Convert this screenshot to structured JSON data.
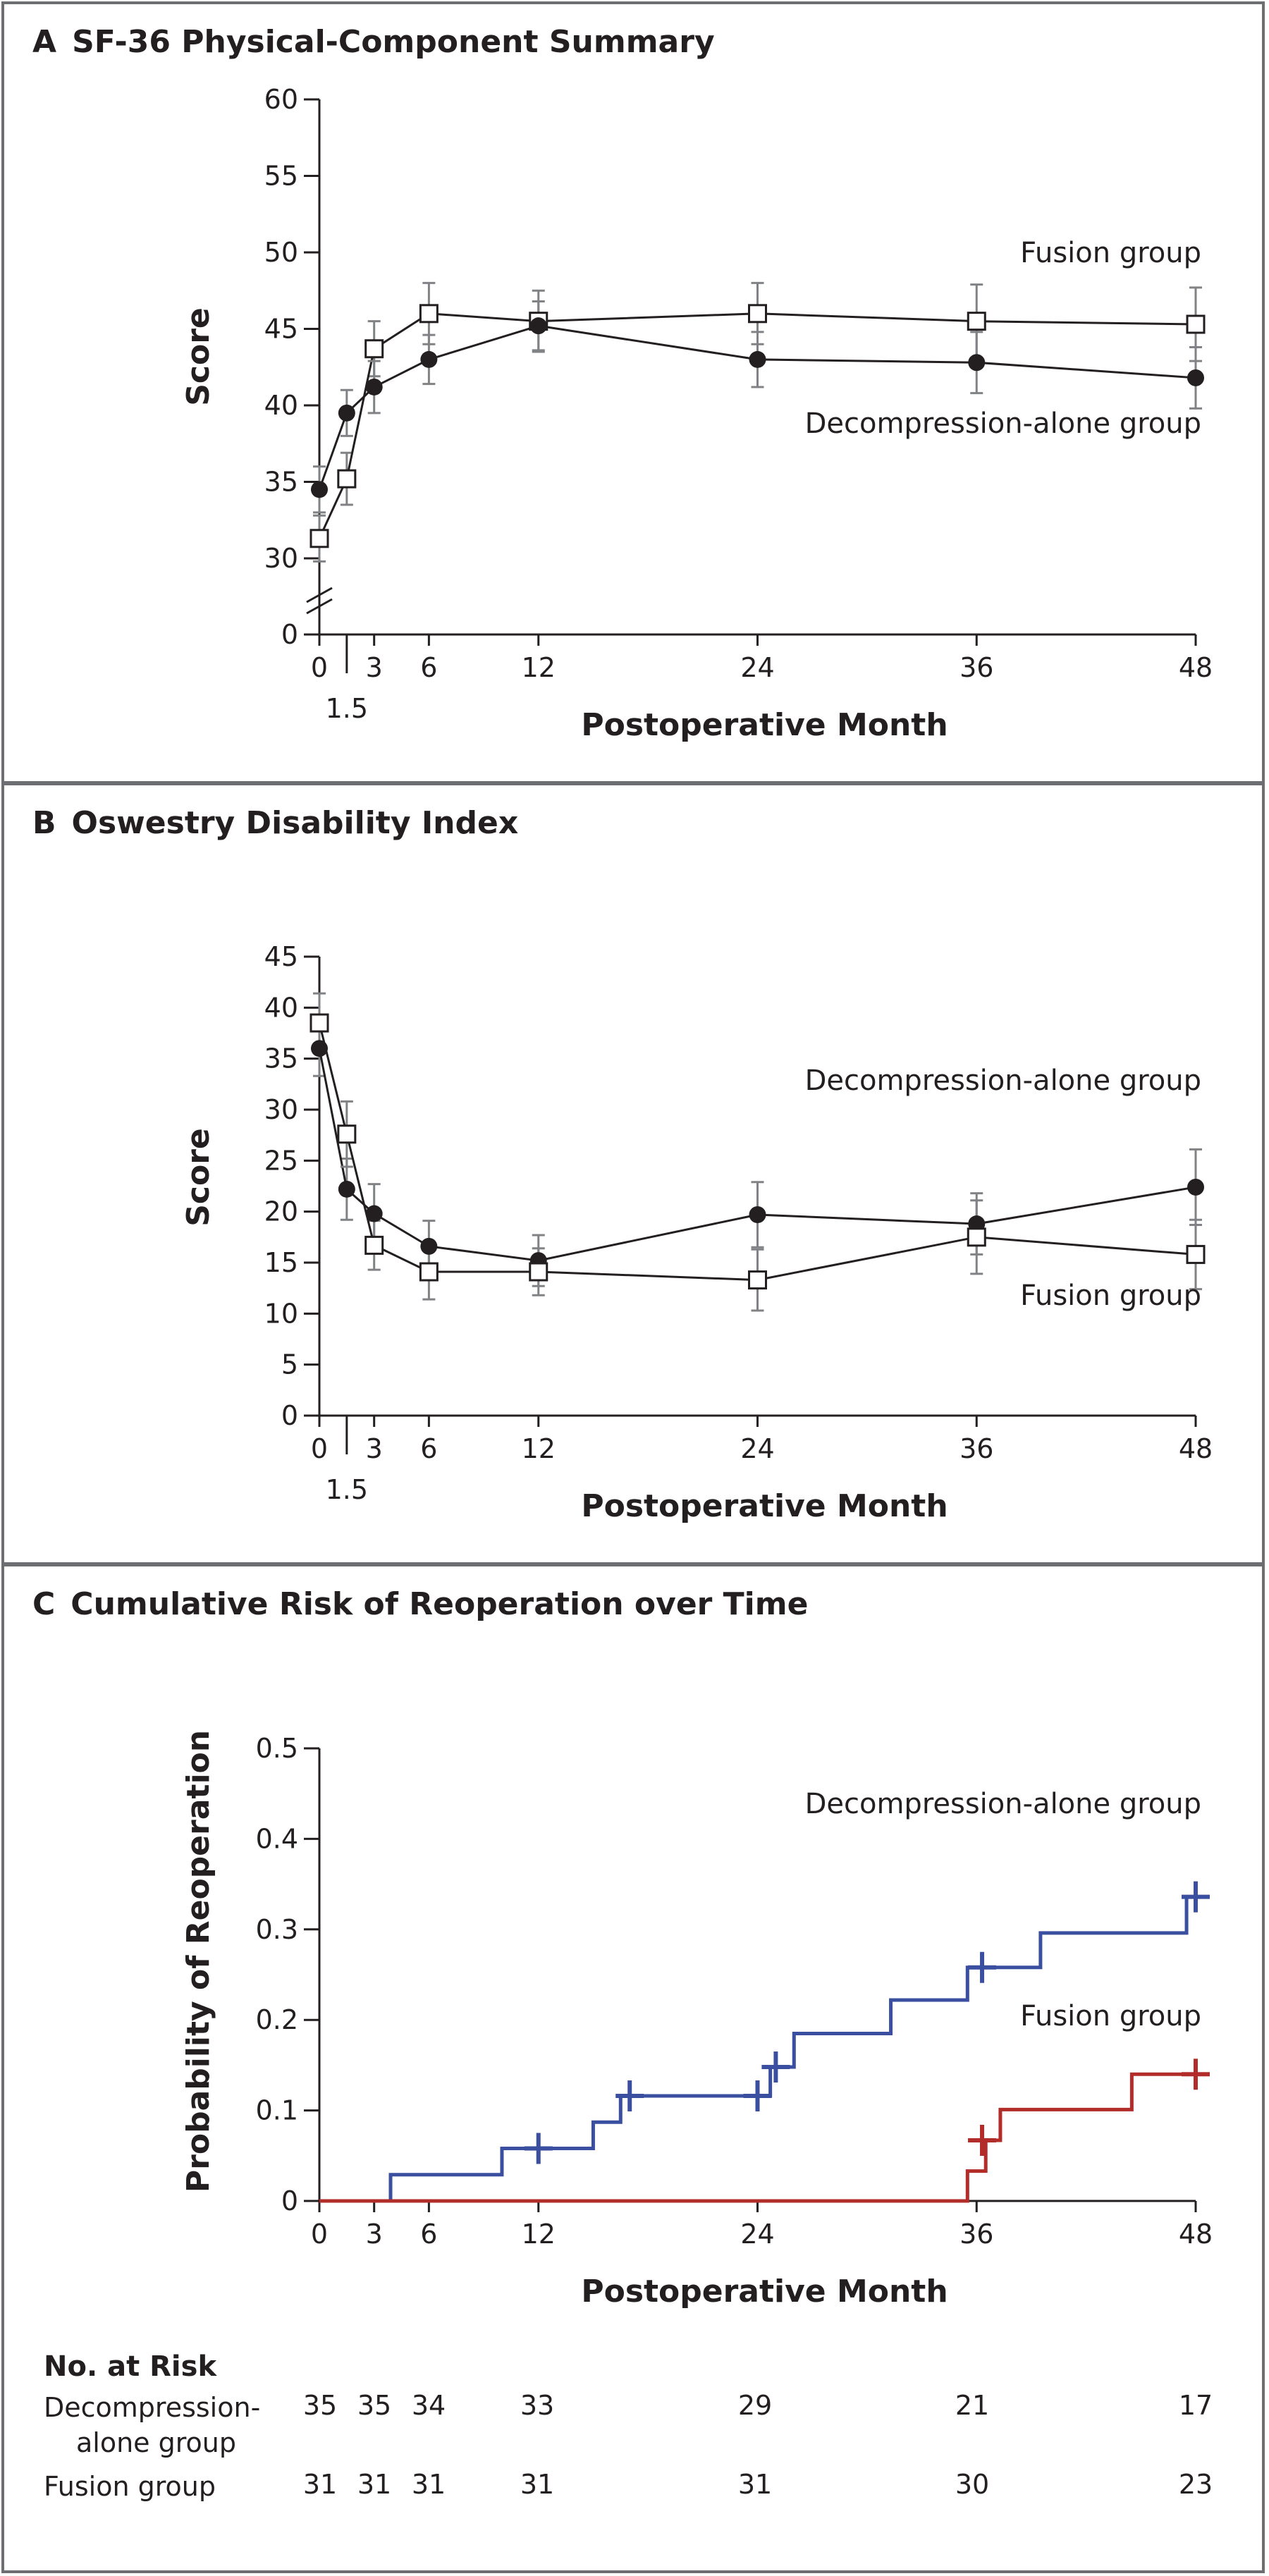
{
  "colors": {
    "blue": "#3a4fa0",
    "red": "#b22d2a",
    "black": "#231f20",
    "gray": "#808285",
    "frame": "#6d6e71"
  },
  "chart_data": [
    {
      "id": "A",
      "letter": "A",
      "type": "line",
      "title": "SF-36 Physical-Component Summary",
      "xlabel": "Postoperative Month",
      "ylabel": "Score",
      "x_ticks": [
        "0",
        "3",
        "6",
        "12",
        "24",
        "36",
        "48"
      ],
      "x_tick_values": [
        0,
        3,
        6,
        12,
        24,
        36,
        48
      ],
      "x_sub_tick": "1.5",
      "y_ticks": [
        "0",
        "30",
        "35",
        "40",
        "45",
        "50",
        "55",
        "60"
      ],
      "ylim": [
        30,
        60
      ],
      "axis_break": true,
      "x": [
        0,
        1.5,
        3,
        6,
        12,
        24,
        36,
        48
      ],
      "series": [
        {
          "name": "Fusion group",
          "label": "Fusion group",
          "marker": "square",
          "values": [
            31.3,
            35.2,
            43.7,
            46.0,
            45.5,
            46.0,
            45.5,
            45.3
          ],
          "err": [
            1.5,
            1.7,
            1.8,
            2.0,
            2.0,
            2.0,
            2.4,
            2.4
          ]
        },
        {
          "name": "Decompression-alone group",
          "label": "Decompression-alone group",
          "marker": "circle",
          "values": [
            34.5,
            39.5,
            41.2,
            43.0,
            45.2,
            43.0,
            42.8,
            41.8
          ],
          "err": [
            1.5,
            1.5,
            1.7,
            1.6,
            1.6,
            1.8,
            2.0,
            2.0
          ]
        }
      ]
    },
    {
      "id": "B",
      "letter": "B",
      "type": "line",
      "title": "Oswestry Disability Index",
      "xlabel": "Postoperative Month",
      "ylabel": "Score",
      "x_ticks": [
        "0",
        "3",
        "6",
        "12",
        "24",
        "36",
        "48"
      ],
      "x_tick_values": [
        0,
        3,
        6,
        12,
        24,
        36,
        48
      ],
      "x_sub_tick": "1.5",
      "y_ticks": [
        "0",
        "5",
        "10",
        "15",
        "20",
        "25",
        "30",
        "35",
        "40",
        "45"
      ],
      "ylim": [
        0,
        45
      ],
      "x": [
        0,
        1.5,
        3,
        6,
        12,
        24,
        36,
        48
      ],
      "series": [
        {
          "name": "Decompression-alone group",
          "label": "Decompression-alone group",
          "marker": "circle",
          "values": [
            36.0,
            22.2,
            19.8,
            16.6,
            15.2,
            19.7,
            18.8,
            22.4
          ],
          "err": [
            2.7,
            3.0,
            2.9,
            2.5,
            2.5,
            3.2,
            3.0,
            3.7
          ]
        },
        {
          "name": "Fusion group",
          "label": "Fusion group",
          "marker": "square",
          "values": [
            38.5,
            27.6,
            16.7,
            14.1,
            14.1,
            13.3,
            17.5,
            15.8
          ],
          "err": [
            2.9,
            3.2,
            2.4,
            2.7,
            2.3,
            3.0,
            3.6,
            3.4
          ]
        }
      ]
    },
    {
      "id": "C",
      "letter": "C",
      "type": "step",
      "title": "Cumulative Risk of Reoperation over Time",
      "xlabel": "Postoperative Month",
      "ylabel": "Probability of Reoperation",
      "x_ticks": [
        "0",
        "3",
        "6",
        "12",
        "24",
        "36",
        "48"
      ],
      "x_tick_values": [
        0,
        3,
        6,
        12,
        24,
        36,
        48
      ],
      "y_ticks": [
        "0",
        "0.1",
        "0.2",
        "0.3",
        "0.4",
        "0.5"
      ],
      "ylim": [
        0,
        0.5
      ],
      "series": [
        {
          "name": "Decompression-alone group",
          "label": "Decompression-alone group",
          "color": "blue",
          "steps": [
            [
              0,
              0
            ],
            [
              3.9,
              0.029
            ],
            [
              10,
              0.058
            ],
            [
              15,
              0.087
            ],
            [
              16.5,
              0.116
            ],
            [
              24.7,
              0.148
            ],
            [
              26,
              0.185
            ],
            [
              31.3,
              0.222
            ],
            [
              35.5,
              0.258
            ],
            [
              39.5,
              0.296
            ],
            [
              47.5,
              0.336
            ]
          ],
          "end": 48,
          "censor": [
            [
              12,
              0.058
            ],
            [
              17,
              0.116
            ],
            [
              24,
              0.116
            ],
            [
              25,
              0.148
            ],
            [
              36.3,
              0.258
            ],
            [
              48,
              0.336
            ]
          ]
        },
        {
          "name": "Fusion group",
          "label": "Fusion group",
          "color": "red",
          "steps": [
            [
              0,
              0
            ],
            [
              35.5,
              0.033
            ],
            [
              36.5,
              0.067
            ],
            [
              37.3,
              0.101
            ],
            [
              44.5,
              0.14
            ]
          ],
          "end": 48,
          "censor": [
            [
              36.3,
              0.067
            ],
            [
              48,
              0.14
            ]
          ]
        }
      ]
    }
  ],
  "risk_table": {
    "title": "No. at Risk",
    "columns_months": [
      0,
      3,
      6,
      12,
      24,
      36,
      48
    ],
    "rows": [
      {
        "label_line1": "Decompression-",
        "label_line2": "alone group",
        "values": [
          "35",
          "35",
          "34",
          "33",
          "29",
          "21",
          "17"
        ]
      },
      {
        "label_line1": "Fusion group",
        "label_line2": "",
        "values": [
          "31",
          "31",
          "31",
          "31",
          "31",
          "30",
          "23"
        ]
      }
    ]
  }
}
